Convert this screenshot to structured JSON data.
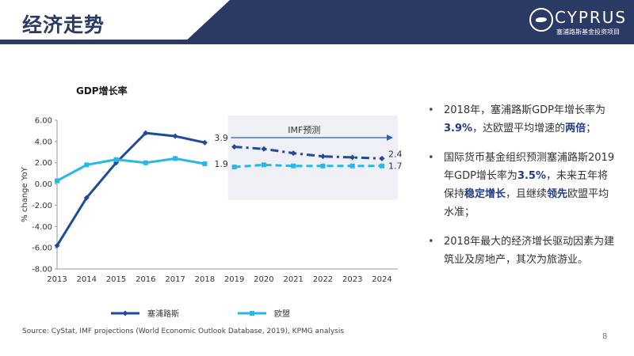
{
  "header": {
    "title": "经济走势"
  },
  "logo": {
    "text": "CYPRUS",
    "sub": "塞浦路斯基金投资项目"
  },
  "colors": {
    "cyprus": "#1e4b9a",
    "eu": "#29b6e8",
    "band": "#2b3a64",
    "accent": "#2d5db5"
  },
  "chart_data": {
    "type": "line",
    "title": "GDP增长率",
    "ylabel": "% change YoY",
    "xlabel": "",
    "x": [
      "2013",
      "2014",
      "2015",
      "2016",
      "2017",
      "2018",
      "2019",
      "2020",
      "2021",
      "2022",
      "2023",
      "2024"
    ],
    "ylim": [
      -8,
      6
    ],
    "yticks": [
      "6.00",
      "4.00",
      "2.00",
      "0.00",
      "-2.00",
      "-4.00",
      "-6.00",
      "-8.00"
    ],
    "projection_label": "IMF预测",
    "series": [
      {
        "name": "塞浦路斯",
        "values": [
          -5.8,
          -1.3,
          2.0,
          4.8,
          4.5,
          3.9,
          3.5,
          3.3,
          2.9,
          2.6,
          2.5,
          2.4
        ]
      },
      {
        "name": "欧盟",
        "values": [
          0.3,
          1.8,
          2.3,
          2.0,
          2.4,
          1.9,
          1.6,
          1.8,
          1.7,
          1.7,
          1.7,
          1.7
        ]
      }
    ],
    "annotations": [
      {
        "series": 0,
        "index": 5,
        "text": "3.9"
      },
      {
        "series": 1,
        "index": 5,
        "text": "1.9"
      },
      {
        "series": 0,
        "index": 11,
        "text": "2.4"
      },
      {
        "series": 1,
        "index": 11,
        "text": "1.7"
      }
    ],
    "projection_start_index": 6,
    "legend_placement": "bottom"
  },
  "bullets": [
    {
      "parts": [
        [
          "2018年，塞浦路斯GDP年增长率为",
          false
        ],
        [
          "3.9%",
          true
        ],
        [
          "，达欧盟平均增速的",
          false
        ],
        [
          "两倍",
          true
        ],
        [
          "；",
          false
        ]
      ]
    },
    {
      "parts": [
        [
          "国际货币基金组织预测塞浦路斯2019年GDP增长率为",
          false
        ],
        [
          "3.5%",
          true
        ],
        [
          "，未来五年将保持",
          false
        ],
        [
          "稳定增长",
          true
        ],
        [
          "，且继续",
          false
        ],
        [
          "领先",
          true
        ],
        [
          "欧盟平均水准；",
          false
        ]
      ]
    },
    {
      "parts": [
        [
          "2018年最大的经济增长驱动因素为建筑业及房地产，其次为旅游业。",
          false
        ]
      ]
    }
  ],
  "footer": {
    "source": "Source: CyStat, IMF projections (World Economic Outlook Database, 2019), KPMG analysis",
    "page": "8"
  }
}
